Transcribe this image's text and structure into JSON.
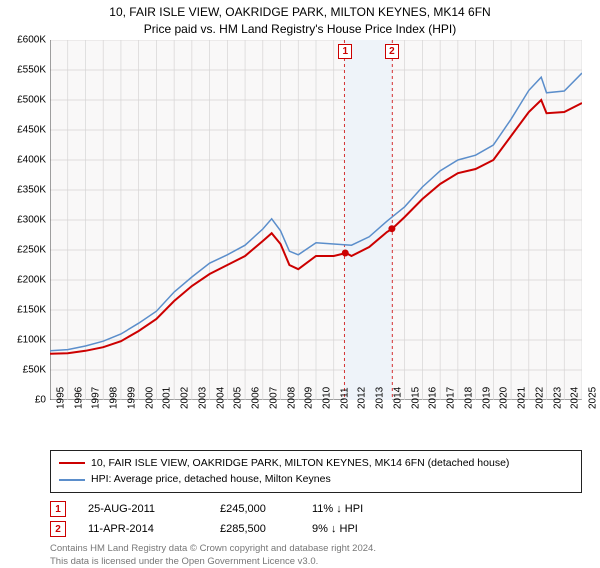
{
  "title_line1": "10, FAIR ISLE VIEW, OAKRIDGE PARK, MILTON KEYNES, MK14 6FN",
  "title_line2": "Price paid vs. HM Land Registry's House Price Index (HPI)",
  "chart": {
    "type": "line",
    "background_color": "#f9f8f8",
    "grid_color": "#d6d4d4",
    "axis_color": "#444444",
    "ylim": [
      0,
      600000
    ],
    "ytick_step": 50000,
    "y_prefix": "£",
    "y_suffix": "K",
    "xlim": [
      1995,
      2025
    ],
    "xticks": [
      1995,
      1996,
      1997,
      1998,
      1999,
      2000,
      2001,
      2002,
      2003,
      2004,
      2005,
      2006,
      2007,
      2008,
      2009,
      2010,
      2011,
      2012,
      2013,
      2014,
      2015,
      2016,
      2017,
      2018,
      2019,
      2020,
      2021,
      2022,
      2023,
      2024,
      2025
    ],
    "marker_band": {
      "start": 2011.6,
      "end": 2014.3,
      "fill": "#eef3f9"
    },
    "series": [
      {
        "name": "price_paid",
        "color": "#cc0000",
        "width": 2,
        "points": [
          [
            1995,
            77000
          ],
          [
            1996,
            78000
          ],
          [
            1997,
            82000
          ],
          [
            1998,
            88000
          ],
          [
            1999,
            98000
          ],
          [
            2000,
            115000
          ],
          [
            2001,
            135000
          ],
          [
            2002,
            165000
          ],
          [
            2003,
            190000
          ],
          [
            2004,
            210000
          ],
          [
            2005,
            225000
          ],
          [
            2006,
            240000
          ],
          [
            2007,
            265000
          ],
          [
            2007.5,
            278000
          ],
          [
            2008,
            260000
          ],
          [
            2008.5,
            225000
          ],
          [
            2009,
            218000
          ],
          [
            2010,
            240000
          ],
          [
            2011,
            240000
          ],
          [
            2011.7,
            245000
          ],
          [
            2012,
            240000
          ],
          [
            2013,
            255000
          ],
          [
            2014,
            280000
          ],
          [
            2014.3,
            285500
          ],
          [
            2015,
            305000
          ],
          [
            2016,
            335000
          ],
          [
            2017,
            360000
          ],
          [
            2018,
            378000
          ],
          [
            2019,
            385000
          ],
          [
            2020,
            400000
          ],
          [
            2021,
            440000
          ],
          [
            2022,
            480000
          ],
          [
            2022.7,
            500000
          ],
          [
            2023,
            478000
          ],
          [
            2024,
            480000
          ],
          [
            2025,
            495000
          ]
        ],
        "sale_markers": [
          {
            "x": 2011.65,
            "y": 245000,
            "label": "1"
          },
          {
            "x": 2014.28,
            "y": 285500,
            "label": "2"
          }
        ]
      },
      {
        "name": "hpi",
        "color": "#5b8ecb",
        "width": 1.5,
        "points": [
          [
            1995,
            82000
          ],
          [
            1996,
            84000
          ],
          [
            1997,
            90000
          ],
          [
            1998,
            98000
          ],
          [
            1999,
            110000
          ],
          [
            2000,
            128000
          ],
          [
            2001,
            148000
          ],
          [
            2002,
            180000
          ],
          [
            2003,
            205000
          ],
          [
            2004,
            228000
          ],
          [
            2005,
            242000
          ],
          [
            2006,
            258000
          ],
          [
            2007,
            285000
          ],
          [
            2007.5,
            302000
          ],
          [
            2008,
            282000
          ],
          [
            2008.5,
            248000
          ],
          [
            2009,
            242000
          ],
          [
            2010,
            262000
          ],
          [
            2011,
            260000
          ],
          [
            2012,
            258000
          ],
          [
            2013,
            272000
          ],
          [
            2014,
            298000
          ],
          [
            2015,
            322000
          ],
          [
            2016,
            355000
          ],
          [
            2017,
            382000
          ],
          [
            2018,
            400000
          ],
          [
            2019,
            408000
          ],
          [
            2020,
            425000
          ],
          [
            2021,
            468000
          ],
          [
            2022,
            516000
          ],
          [
            2022.7,
            538000
          ],
          [
            2023,
            512000
          ],
          [
            2024,
            515000
          ],
          [
            2025,
            545000
          ]
        ]
      }
    ]
  },
  "legend": {
    "items": [
      {
        "color": "#cc0000",
        "width": 2,
        "label": "10, FAIR ISLE VIEW, OAKRIDGE PARK, MILTON KEYNES, MK14 6FN (detached house)"
      },
      {
        "color": "#5b8ecb",
        "width": 1.5,
        "label": "HPI: Average price, detached house, Milton Keynes"
      }
    ]
  },
  "transactions": [
    {
      "num": "1",
      "date": "25-AUG-2011",
      "price": "£245,000",
      "diff": "11% ↓ HPI"
    },
    {
      "num": "2",
      "date": "11-APR-2014",
      "price": "£285,500",
      "diff": "9% ↓ HPI"
    }
  ],
  "footnote_line1": "Contains HM Land Registry data © Crown copyright and database right 2024.",
  "footnote_line2": "This data is licensed under the Open Government Licence v3.0."
}
